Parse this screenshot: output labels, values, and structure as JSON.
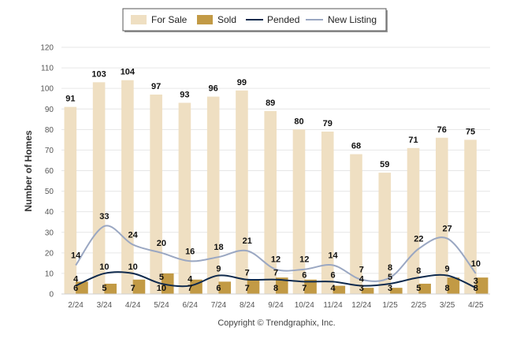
{
  "chart_data": {
    "type": "bar",
    "categories": [
      "2/24",
      "3/24",
      "4/24",
      "5/24",
      "6/24",
      "7/24",
      "8/24",
      "9/24",
      "10/24",
      "11/24",
      "12/24",
      "1/25",
      "2/25",
      "3/25",
      "4/25"
    ],
    "series": [
      {
        "name": "For Sale",
        "kind": "bar",
        "color": "#efdfc2",
        "values": [
          91,
          103,
          104,
          97,
          93,
          96,
          99,
          89,
          80,
          79,
          68,
          59,
          71,
          76,
          75
        ]
      },
      {
        "name": "Sold",
        "kind": "bar",
        "color": "#c29a45",
        "values": [
          6,
          5,
          7,
          10,
          7,
          6,
          7,
          8,
          7,
          4,
          3,
          3,
          5,
          8,
          8
        ]
      },
      {
        "name": "Pended",
        "kind": "line",
        "color": "#0f2a4d",
        "values": [
          4,
          10,
          10,
          5,
          4,
          9,
          7,
          7,
          6,
          6,
          4,
          5,
          8,
          9,
          3
        ]
      },
      {
        "name": "New Listing",
        "kind": "line",
        "color": "#9aa7c2",
        "values": [
          14,
          33,
          24,
          20,
          16,
          18,
          21,
          12,
          12,
          14,
          7,
          8,
          22,
          27,
          10
        ]
      }
    ],
    "ylabel": "Number of Homes",
    "ylim": [
      0,
      120
    ],
    "yticks": [
      0,
      10,
      20,
      30,
      40,
      50,
      60,
      70,
      80,
      90,
      100,
      110,
      120
    ],
    "grid": true,
    "legend_position": "top-center"
  },
  "footer": "Copyright © Trendgraphix, Inc."
}
